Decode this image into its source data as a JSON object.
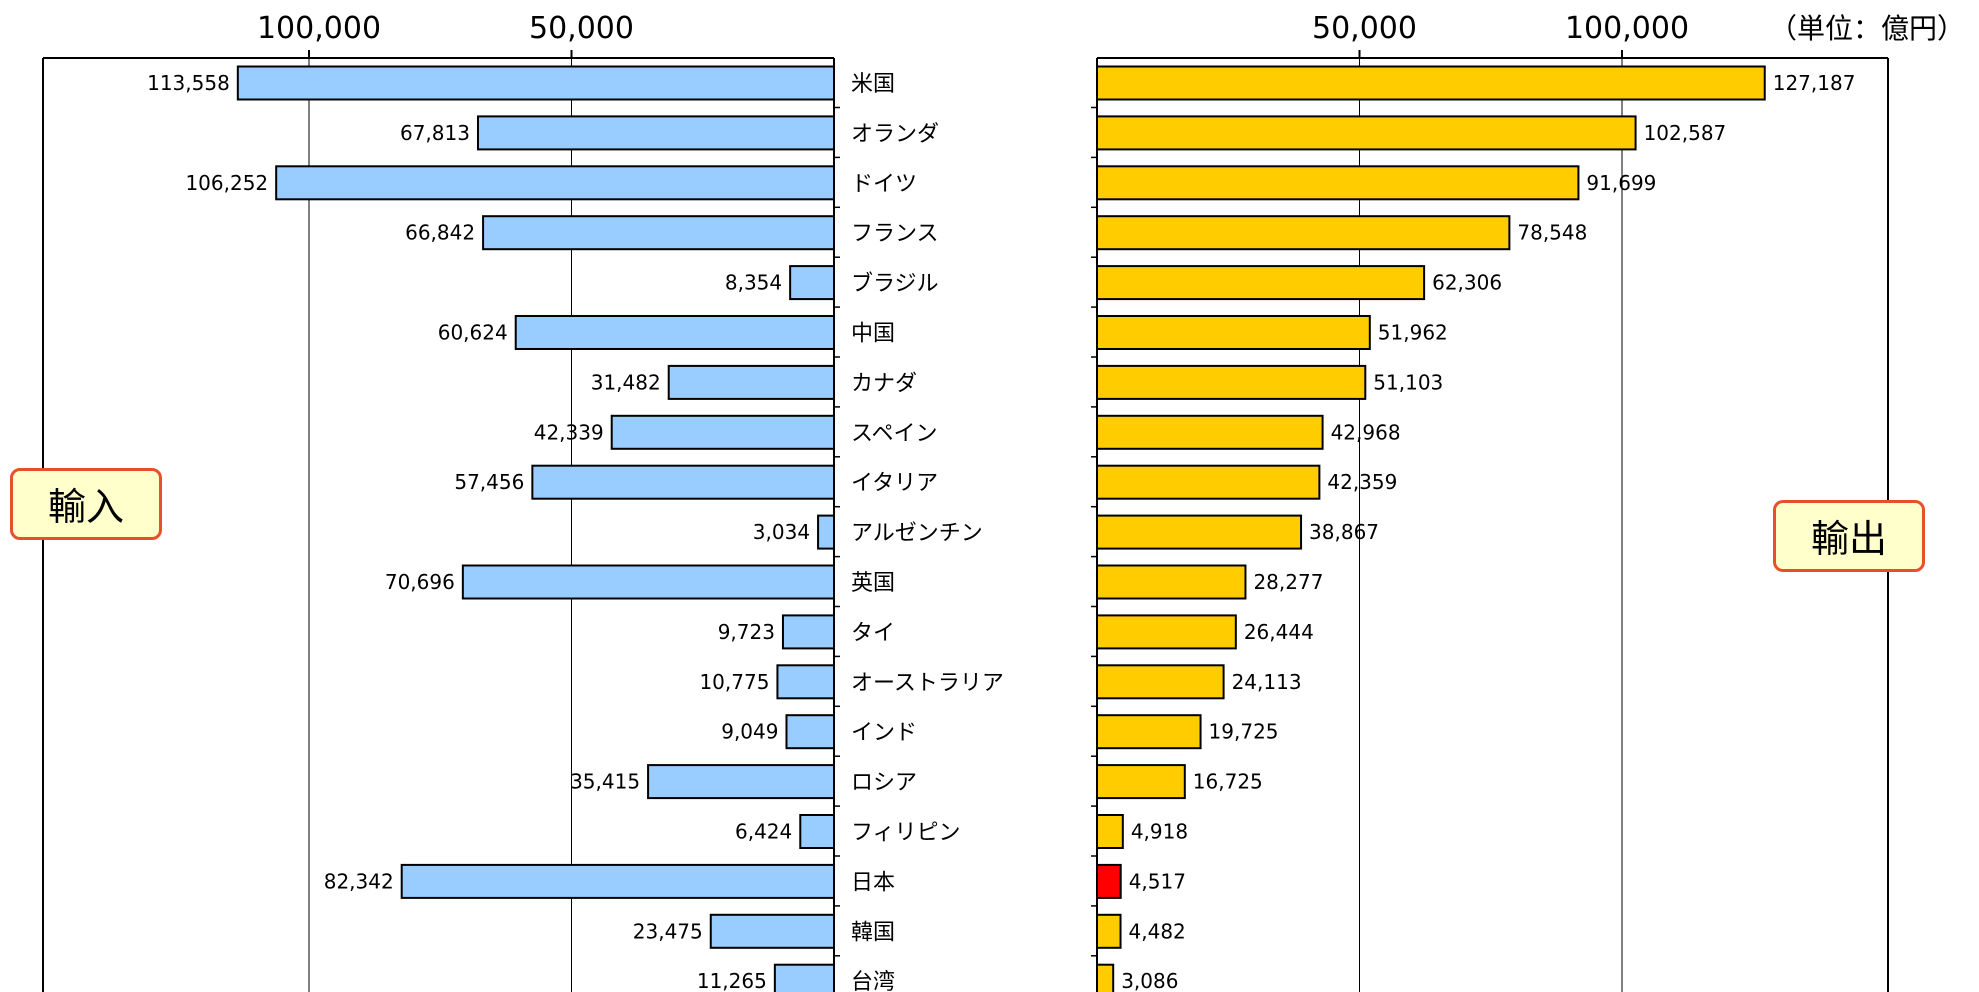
{
  "chart_data": {
    "type": "bar",
    "unit_label": "（単位：億円）",
    "left_series": {
      "label": "輸入",
      "color": "#99ccff"
    },
    "right_series": {
      "label": "輸出",
      "color": "#ffcc00",
      "highlight_color": "#ff0000",
      "highlight_category": "日本"
    },
    "left_ticks": [
      "100,000",
      "50,000"
    ],
    "right_ticks": [
      "50,000",
      "100,000"
    ],
    "xlim": [
      0,
      150000
    ],
    "categories": [
      "米国",
      "オランダ",
      "ドイツ",
      "フランス",
      "ブラジル",
      "中国",
      "カナダ",
      "スペイン",
      "イタリア",
      "アルゼンチン",
      "英国",
      "タイ",
      "オーストラリア",
      "インド",
      "ロシア",
      "フィリピン",
      "日本",
      "韓国",
      "台湾"
    ],
    "imports": [
      113558,
      67813,
      106252,
      66842,
      8354,
      60624,
      31482,
      42339,
      57456,
      3034,
      70696,
      9723,
      10775,
      9049,
      35415,
      6424,
      82342,
      23475,
      11265
    ],
    "imports_labels": [
      "113,558",
      "67,813",
      "106,252",
      "66,842",
      "8,354",
      "60,624",
      "31,482",
      "42,339",
      "57,456",
      "3,034",
      "70,696",
      "9,723",
      "10,775",
      "9,049",
      "35,415",
      "6,424",
      "82,342",
      "23,475",
      "11,265"
    ],
    "exports": [
      127187,
      102587,
      91699,
      78548,
      62306,
      51962,
      51103,
      42968,
      42359,
      38867,
      28277,
      26444,
      24113,
      19725,
      16725,
      4918,
      4517,
      4482,
      3086
    ],
    "exports_labels": [
      "127,187",
      "102,587",
      "91,699",
      "78,548",
      "62,306",
      "51,962",
      "51,103",
      "42,968",
      "42,359",
      "38,867",
      "28,277",
      "26,444",
      "24,113",
      "19,725",
      "16,725",
      "4,918",
      "4,517",
      "4,482",
      "3,086"
    ]
  }
}
